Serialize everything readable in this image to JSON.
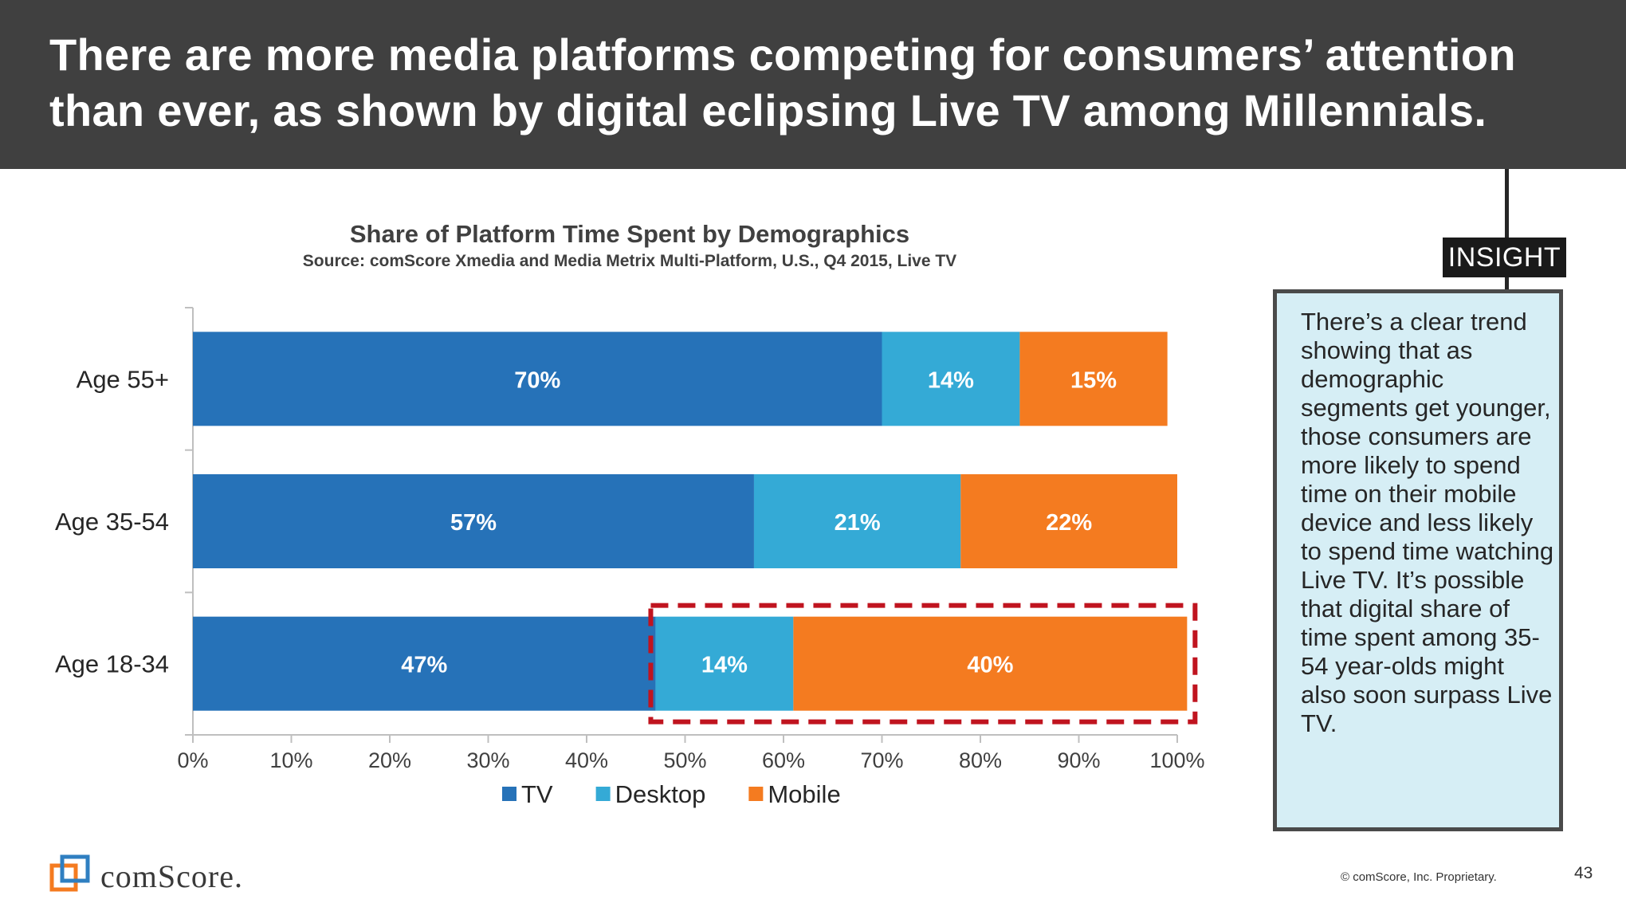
{
  "header": {
    "line1": "There are more media platforms competing for consumers’ attention",
    "line2": "than ever, as shown by digital eclipsing Live TV among Millennials."
  },
  "chart_data": {
    "type": "bar",
    "orientation": "horizontal",
    "stacked": true,
    "title": "Share of Platform Time Spent by Demographics",
    "subtitle": "Source: comScore Xmedia and Media Metrix Multi-Platform, U.S., Q4 2015, Live TV",
    "categories": [
      "Age 55+",
      "Age 35-54",
      "Age 18-34"
    ],
    "series": [
      {
        "name": "TV",
        "color": "#2672b8",
        "values": [
          70,
          57,
          47
        ],
        "labels": [
          "70%",
          "57%",
          "47%"
        ]
      },
      {
        "name": "Desktop",
        "color": "#34aad6",
        "values": [
          14,
          21,
          14
        ],
        "labels": [
          "14%",
          "21%",
          "14%"
        ]
      },
      {
        "name": "Mobile",
        "color": "#f47b20",
        "values": [
          15,
          22,
          40
        ],
        "labels": [
          "15%",
          "22%",
          "40%"
        ]
      }
    ],
    "xlim": [
      0,
      100
    ],
    "xticks": [
      "0%",
      "10%",
      "20%",
      "30%",
      "40%",
      "50%",
      "60%",
      "70%",
      "80%",
      "90%",
      "100%"
    ],
    "legend_position": "bottom",
    "highlight": {
      "category": "Age 18-34",
      "series": [
        "Desktop",
        "Mobile"
      ],
      "color": "#c0141f",
      "style": "dashed"
    }
  },
  "insight": {
    "tag": "INSIGHT",
    "text": "There’s a clear trend showing that as demographic segments get younger, those consumers are more likely to spend time on their mobile device and less likely to spend time watching Live TV. It’s possible that digital share of time spent among 35-54 year-olds might also soon surpass Live TV."
  },
  "footer": {
    "logo_text": "comScore.",
    "copyright": "© comScore, Inc. Proprietary.",
    "page_number": "43"
  },
  "colors": {
    "header_bg": "#404040",
    "insight_bg": "#d6eef5",
    "highlight": "#c0141f"
  }
}
